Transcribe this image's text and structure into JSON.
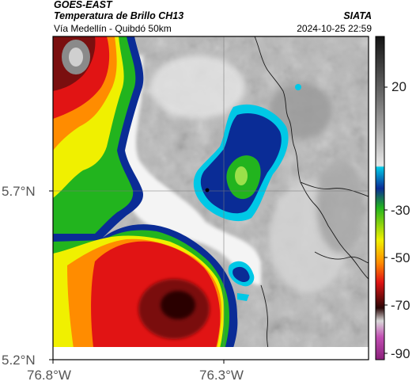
{
  "header": {
    "satellite": "GOES-EAST",
    "product": "Temperatura de Brillo CH13",
    "organization": "SIATA",
    "route": "Vía Medellín - Quibdó 50km",
    "timestamp": "2024-10-25 22:59"
  },
  "map": {
    "lat_labels": [
      "5.7°N",
      "5.2°N"
    ],
    "lon_labels": [
      "76.8°W",
      "76.3°W"
    ],
    "gridlines": true
  },
  "colorbar": {
    "tick_labels": [
      "20",
      "-30",
      "-50",
      "-70",
      "-90"
    ],
    "colors": {
      "warm_gray_top": "#d9d9d9",
      "cold_gray_bottom": "#141414",
      "cyan": "#00c8e6",
      "blue": "#0a2c96",
      "green": "#22b41e",
      "yellow": "#f0f000",
      "orange": "#ff8c00",
      "red": "#e11414",
      "dark_red": "#4a0a0a",
      "magenta": "#c24fb3"
    }
  }
}
